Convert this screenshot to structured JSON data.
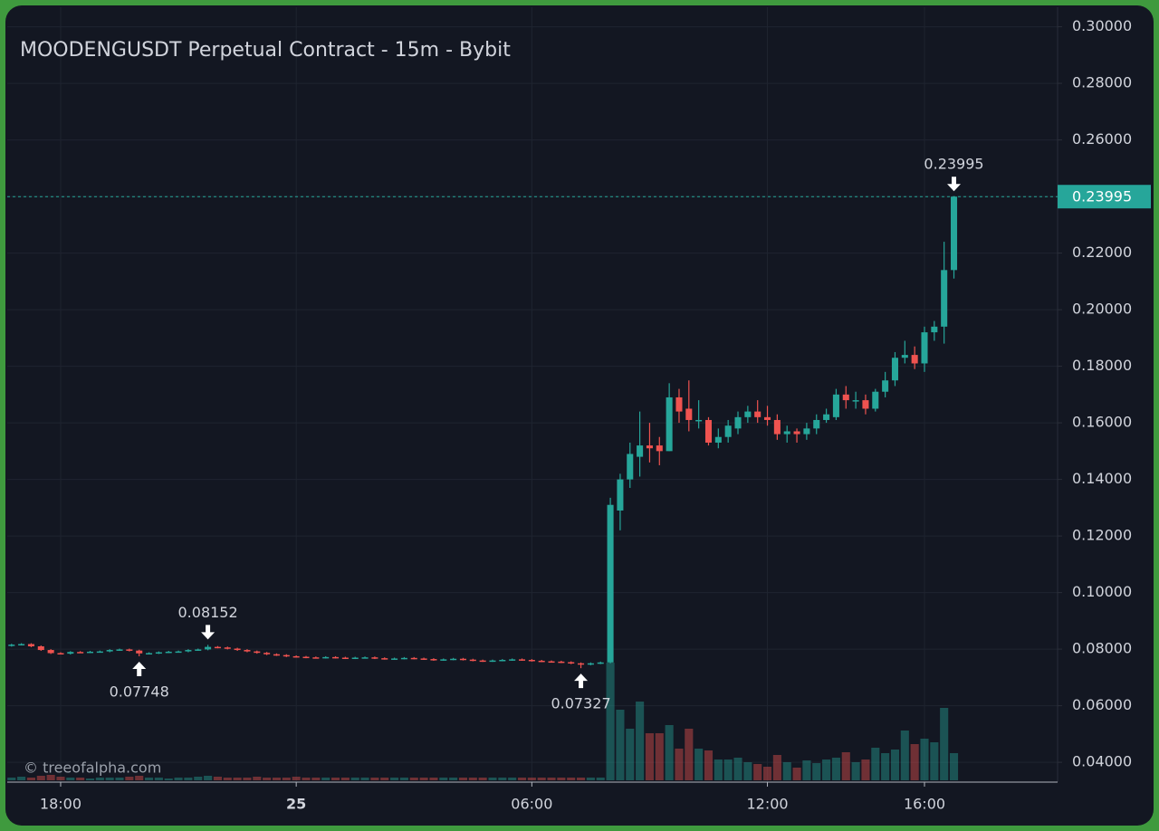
{
  "chart_data": {
    "type": "candlestick",
    "title": "MOODENGUSDT Perpetual Contract - 15m - Bybit",
    "watermark": "© treeofalpha.com",
    "up_color": "#26a69a",
    "down_color": "#ef5350",
    "grid": true,
    "xlim": [
      16.64,
      43.39
    ],
    "xticks": [
      {
        "value": 18,
        "label": "18:00"
      },
      {
        "value": 24,
        "label": "25"
      },
      {
        "value": 30,
        "label": "06:00"
      },
      {
        "value": 36,
        "label": "12:00"
      },
      {
        "value": 40,
        "label": "16:00"
      }
    ],
    "ylim": [
      0.033,
      0.3069
    ],
    "yticks": [
      {
        "value": 0.04,
        "label": "0.04000"
      },
      {
        "value": 0.06,
        "label": "0.06000"
      },
      {
        "value": 0.08,
        "label": "0.08000"
      },
      {
        "value": 0.1,
        "label": "0.10000"
      },
      {
        "value": 0.12,
        "label": "0.12000"
      },
      {
        "value": 0.14,
        "label": "0.14000"
      },
      {
        "value": 0.16,
        "label": "0.16000"
      },
      {
        "value": 0.18,
        "label": "0.18000"
      },
      {
        "value": 0.2,
        "label": "0.20000"
      },
      {
        "value": 0.22,
        "label": "0.22000"
      },
      {
        "value": 0.24,
        "label": "0.24000"
      },
      {
        "value": 0.26,
        "label": "0.26000"
      },
      {
        "value": 0.28,
        "label": "0.28000"
      },
      {
        "value": 0.3,
        "label": "0.30000"
      }
    ],
    "x": [
      16.75,
      17,
      17.25,
      17.5,
      17.75,
      18,
      18.25,
      18.5,
      18.75,
      19,
      19.25,
      19.5,
      19.75,
      20,
      20.25,
      20.5,
      20.75,
      21,
      21.25,
      21.5,
      21.75,
      22,
      22.25,
      22.5,
      22.75,
      23,
      23.25,
      23.5,
      23.75,
      24,
      24.25,
      24.5,
      24.75,
      25,
      25.25,
      25.5,
      25.75,
      26,
      26.25,
      26.5,
      26.75,
      27,
      27.25,
      27.5,
      27.75,
      28,
      28.25,
      28.5,
      28.75,
      29,
      29.25,
      29.5,
      29.75,
      30,
      30.25,
      30.5,
      30.75,
      31,
      31.25,
      31.5,
      31.75,
      32,
      32.25,
      32.5,
      32.75,
      33,
      33.25,
      33.5,
      33.75,
      34,
      34.25,
      34.5,
      34.75,
      35,
      35.25,
      35.5,
      35.75,
      36,
      36.25,
      36.5,
      36.75,
      37,
      37.25,
      37.5,
      37.75,
      38,
      38.25,
      38.5,
      38.75,
      39,
      39.25,
      39.5,
      39.75,
      40,
      40.25,
      40.5,
      40.75
    ],
    "open": [
      0.0812,
      0.0816,
      0.0818,
      0.081,
      0.0797,
      0.0786,
      0.0784,
      0.079,
      0.0789,
      0.0791,
      0.0792,
      0.0797,
      0.0799,
      0.0795,
      0.0785,
      0.0786,
      0.0789,
      0.0791,
      0.0792,
      0.0797,
      0.0799,
      0.0808,
      0.0806,
      0.0802,
      0.0797,
      0.0792,
      0.0787,
      0.0782,
      0.0779,
      0.0775,
      0.0773,
      0.0771,
      0.077,
      0.0772,
      0.077,
      0.0768,
      0.077,
      0.0771,
      0.0768,
      0.0766,
      0.0767,
      0.0769,
      0.0767,
      0.0765,
      0.0762,
      0.0764,
      0.0766,
      0.0763,
      0.076,
      0.0758,
      0.076,
      0.0762,
      0.0764,
      0.0762,
      0.0759,
      0.0757,
      0.0756,
      0.0754,
      0.075,
      0.0746,
      0.075,
      0.0753,
      0.129,
      0.14,
      0.148,
      0.152,
      0.152,
      0.15,
      0.169,
      0.165,
      0.161,
      0.161,
      0.153,
      0.155,
      0.158,
      0.162,
      0.164,
      0.162,
      0.161,
      0.156,
      0.157,
      0.156,
      0.158,
      0.161,
      0.162,
      0.17,
      0.168,
      0.168,
      0.165,
      0.171,
      0.175,
      0.183,
      0.184,
      0.181,
      0.192,
      0.194,
      0.214
    ],
    "high": [
      0.0819,
      0.0821,
      0.0821,
      0.0813,
      0.08,
      0.0789,
      0.0793,
      0.0793,
      0.0794,
      0.0795,
      0.08,
      0.0802,
      0.0802,
      0.0798,
      0.0789,
      0.0792,
      0.0794,
      0.0795,
      0.08,
      0.0802,
      0.08152,
      0.0811,
      0.0809,
      0.0805,
      0.08,
      0.0795,
      0.079,
      0.0785,
      0.0782,
      0.0778,
      0.0776,
      0.0774,
      0.0775,
      0.0775,
      0.0773,
      0.0773,
      0.0774,
      0.0774,
      0.0771,
      0.077,
      0.0772,
      0.0772,
      0.077,
      0.0768,
      0.0767,
      0.0769,
      0.0769,
      0.0766,
      0.0763,
      0.0763,
      0.0765,
      0.0767,
      0.0767,
      0.0765,
      0.0762,
      0.076,
      0.0759,
      0.0757,
      0.0753,
      0.0753,
      0.0756,
      0.1335,
      0.142,
      0.153,
      0.164,
      0.16,
      0.155,
      0.174,
      0.172,
      0.175,
      0.168,
      0.162,
      0.158,
      0.161,
      0.164,
      0.166,
      0.168,
      0.166,
      0.163,
      0.159,
      0.158,
      0.16,
      0.163,
      0.165,
      0.172,
      0.173,
      0.171,
      0.17,
      0.172,
      0.178,
      0.185,
      0.189,
      0.187,
      0.194,
      0.196,
      0.224,
      0.23995
    ],
    "low": [
      0.0809,
      0.0813,
      0.0807,
      0.0794,
      0.0783,
      0.0781,
      0.0781,
      0.0786,
      0.0786,
      0.0788,
      0.0789,
      0.0794,
      0.0792,
      0.07748,
      0.0782,
      0.0783,
      0.0786,
      0.0788,
      0.0789,
      0.0794,
      0.0796,
      0.0803,
      0.0799,
      0.0794,
      0.0789,
      0.0784,
      0.0779,
      0.0776,
      0.0772,
      0.077,
      0.0768,
      0.0767,
      0.0767,
      0.0767,
      0.0765,
      0.0765,
      0.0767,
      0.0765,
      0.0763,
      0.0763,
      0.0764,
      0.0764,
      0.0762,
      0.0759,
      0.0759,
      0.0761,
      0.076,
      0.0757,
      0.0755,
      0.0755,
      0.0757,
      0.0759,
      0.0759,
      0.0756,
      0.0754,
      0.0753,
      0.0751,
      0.0747,
      0.07327,
      0.0743,
      0.0747,
      0.075,
      0.122,
      0.137,
      0.141,
      0.146,
      0.145,
      0.15,
      0.16,
      0.157,
      0.158,
      0.152,
      0.151,
      0.153,
      0.156,
      0.16,
      0.16,
      0.159,
      0.154,
      0.153,
      0.153,
      0.154,
      0.156,
      0.16,
      0.161,
      0.165,
      0.165,
      0.163,
      0.164,
      0.169,
      0.173,
      0.181,
      0.179,
      0.178,
      0.189,
      0.188,
      0.211
    ],
    "close": [
      0.0816,
      0.0818,
      0.081,
      0.0797,
      0.0786,
      0.0784,
      0.079,
      0.0789,
      0.0791,
      0.0792,
      0.0797,
      0.0799,
      0.0795,
      0.0785,
      0.0786,
      0.0789,
      0.0791,
      0.0792,
      0.0797,
      0.0799,
      0.0808,
      0.0806,
      0.0802,
      0.0797,
      0.0792,
      0.0787,
      0.0782,
      0.0779,
      0.0775,
      0.0773,
      0.0771,
      0.077,
      0.0772,
      0.077,
      0.0768,
      0.077,
      0.0771,
      0.0768,
      0.0766,
      0.0767,
      0.0769,
      0.0767,
      0.0765,
      0.0762,
      0.0764,
      0.0766,
      0.0763,
      0.076,
      0.0758,
      0.076,
      0.0762,
      0.0764,
      0.0762,
      0.0759,
      0.0757,
      0.0756,
      0.0754,
      0.075,
      0.0746,
      0.075,
      0.0753,
      0.131,
      0.14,
      0.149,
      0.152,
      0.151,
      0.15,
      0.169,
      0.164,
      0.161,
      0.161,
      0.153,
      0.155,
      0.159,
      0.162,
      0.164,
      0.162,
      0.161,
      0.156,
      0.157,
      0.156,
      0.158,
      0.161,
      0.163,
      0.17,
      0.168,
      0.168,
      0.165,
      0.171,
      0.175,
      0.183,
      0.184,
      0.181,
      0.192,
      0.194,
      0.214,
      0.23995
    ],
    "volume": [
      3,
      4,
      3,
      5,
      6,
      4,
      3,
      3,
      2,
      3,
      3,
      3,
      4,
      5,
      3,
      3,
      2,
      3,
      3,
      4,
      5,
      4,
      3,
      3,
      3,
      4,
      3,
      3,
      3,
      4,
      3,
      3,
      3,
      3,
      3,
      3,
      3,
      3,
      3,
      3,
      3,
      3,
      3,
      3,
      3,
      3,
      3,
      3,
      3,
      3,
      3,
      3,
      3,
      3,
      3,
      3,
      3,
      3,
      3,
      3,
      3,
      130,
      78,
      57,
      87,
      52,
      52,
      61,
      35,
      57,
      35,
      33,
      23,
      23,
      25,
      20,
      18,
      15,
      28,
      20,
      14,
      22,
      19,
      23,
      25,
      31,
      20,
      23,
      36,
      30,
      34,
      55,
      40,
      46,
      42,
      80,
      30
    ],
    "annotations": [
      {
        "x": 21.75,
        "value": 0.08152,
        "position": "above"
      },
      {
        "x": 20,
        "value": 0.07748,
        "position": "below"
      },
      {
        "x": 31.25,
        "value": 0.07327,
        "position": "below"
      },
      {
        "x": 40.75,
        "value": 0.23995,
        "position": "above"
      }
    ]
  }
}
